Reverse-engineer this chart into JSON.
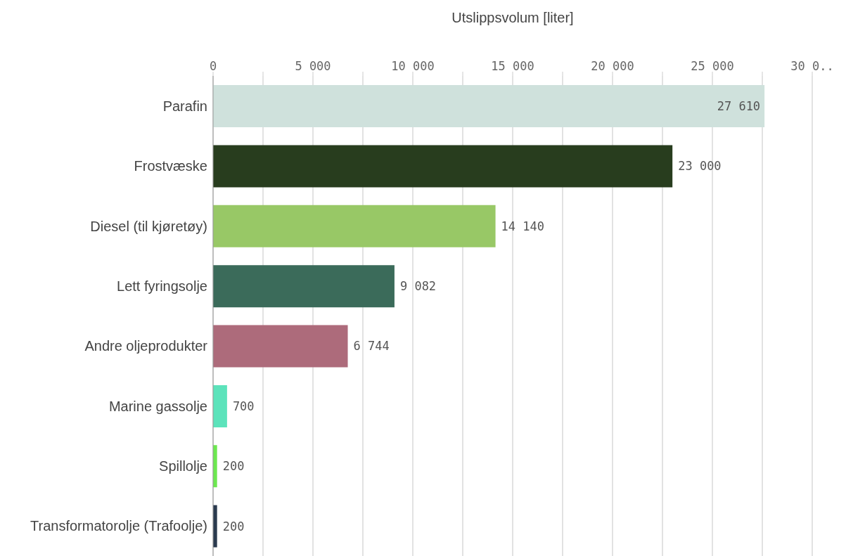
{
  "chart_data": {
    "type": "bar",
    "orientation": "horizontal",
    "xlabel": "Utslippsvolum [liter]",
    "categories": [
      "Parafin",
      "Frostvæske",
      "Diesel (til kjøretøy)",
      "Lett fyringsolje",
      "Andre oljeprodukter",
      "Marine gassolje",
      "Spillolje",
      "Transformatorolje (Trafoolje)"
    ],
    "values": [
      27610,
      23000,
      14140,
      9082,
      6744,
      700,
      200,
      200
    ],
    "value_labels": [
      "27 610",
      "23 000",
      "14 140",
      "9 082",
      "6 744",
      "700",
      "200",
      "200"
    ],
    "colors": [
      "#cfe1dc",
      "#283d1e",
      "#98c866",
      "#3b6b5a",
      "#ad6b7b",
      "#5ce3bb",
      "#6ce84f",
      "#2a3a4e"
    ],
    "xlim": [
      0,
      30000
    ],
    "xticks": [
      {
        "value": 0,
        "label": "0"
      },
      {
        "value": 2500,
        "label": null
      },
      {
        "value": 5000,
        "label": "5 000"
      },
      {
        "value": 7500,
        "label": null
      },
      {
        "value": 10000,
        "label": "10 000"
      },
      {
        "value": 12500,
        "label": null
      },
      {
        "value": 15000,
        "label": "15 000"
      },
      {
        "value": 17500,
        "label": null
      },
      {
        "value": 20000,
        "label": "20 000"
      },
      {
        "value": 22500,
        "label": null
      },
      {
        "value": 25000,
        "label": "25 000"
      },
      {
        "value": 27500,
        "label": null
      },
      {
        "value": 30000,
        "label": "30 0.."
      }
    ],
    "grid": "x",
    "legend": false
  }
}
